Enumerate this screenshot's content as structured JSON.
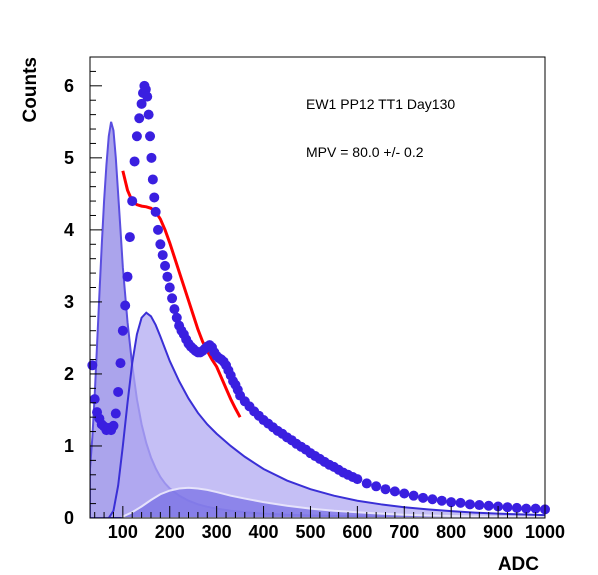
{
  "chart_data": {
    "type": "scatter",
    "xlabel": "ADC",
    "ylabel": "Counts",
    "xlim": [
      30,
      1000
    ],
    "ylim": [
      0,
      6.4
    ],
    "x_ticks": [
      100,
      200,
      300,
      400,
      500,
      600,
      700,
      800,
      900,
      1000
    ],
    "y_ticks": [
      0,
      1,
      2,
      3,
      4,
      5,
      6
    ],
    "grid": false,
    "annotations": [
      "EW1 PP12 TT1 Day130",
      "MPV = 80.0 +/- 0.2"
    ],
    "series": [
      {
        "kind": "points",
        "color": "#3a1fe0",
        "x": [
          35,
          40,
          45,
          50,
          55,
          60,
          65,
          70,
          75,
          80,
          85,
          90,
          95,
          100,
          105,
          110,
          115,
          120,
          125,
          130,
          135,
          140,
          143,
          146,
          149,
          152,
          155,
          158,
          161,
          164,
          167,
          170,
          175,
          180,
          185,
          190,
          195,
          200,
          205,
          210,
          215,
          220,
          225,
          230,
          235,
          240,
          245,
          250,
          255,
          260,
          265,
          270,
          275,
          280,
          285,
          290,
          295,
          300,
          305,
          310,
          315,
          320,
          325,
          330,
          335,
          340,
          345,
          350,
          360,
          370,
          380,
          390,
          400,
          410,
          420,
          430,
          440,
          450,
          460,
          470,
          480,
          490,
          500,
          510,
          520,
          530,
          540,
          550,
          560,
          570,
          580,
          590,
          600,
          620,
          640,
          660,
          680,
          700,
          720,
          740,
          760,
          780,
          800,
          820,
          840,
          860,
          880,
          900,
          920,
          940,
          960,
          980,
          1000
        ],
        "y": [
          2.12,
          1.65,
          1.47,
          1.38,
          1.3,
          1.27,
          1.22,
          1.25,
          1.22,
          1.28,
          1.45,
          1.75,
          2.15,
          2.6,
          2.95,
          3.35,
          3.9,
          4.4,
          4.95,
          5.3,
          5.55,
          5.75,
          5.9,
          6.0,
          5.95,
          5.85,
          5.6,
          5.3,
          5.0,
          4.7,
          4.45,
          4.25,
          4.0,
          3.8,
          3.65,
          3.5,
          3.35,
          3.2,
          3.05,
          2.9,
          2.78,
          2.67,
          2.6,
          2.55,
          2.48,
          2.42,
          2.38,
          2.35,
          2.32,
          2.3,
          2.3,
          2.32,
          2.35,
          2.38,
          2.4,
          2.37,
          2.3,
          2.25,
          2.22,
          2.2,
          2.17,
          2.12,
          2.05,
          1.98,
          1.9,
          1.85,
          1.78,
          1.7,
          1.62,
          1.55,
          1.48,
          1.42,
          1.36,
          1.31,
          1.26,
          1.21,
          1.17,
          1.12,
          1.08,
          1.03,
          0.99,
          0.95,
          0.9,
          0.86,
          0.82,
          0.78,
          0.74,
          0.71,
          0.67,
          0.63,
          0.6,
          0.57,
          0.54,
          0.48,
          0.44,
          0.4,
          0.37,
          0.34,
          0.31,
          0.28,
          0.26,
          0.24,
          0.22,
          0.21,
          0.19,
          0.18,
          0.17,
          0.16,
          0.15,
          0.14,
          0.13,
          0.13,
          0.12
        ]
      },
      {
        "kind": "fit-line",
        "color": "#ff0000",
        "x": [
          100,
          110,
          120,
          130,
          140,
          150,
          160,
          170,
          180,
          190,
          200,
          210,
          220,
          230,
          240,
          250,
          260,
          270,
          280,
          290,
          300,
          310,
          320,
          330,
          340,
          350
        ],
        "y": [
          4.82,
          4.55,
          4.4,
          4.35,
          4.33,
          4.32,
          4.3,
          4.25,
          4.15,
          4.0,
          3.82,
          3.62,
          3.42,
          3.22,
          3.02,
          2.82,
          2.62,
          2.45,
          2.32,
          2.2,
          2.1,
          1.95,
          1.8,
          1.65,
          1.52,
          1.4
        ]
      },
      {
        "kind": "area",
        "color": "#5a4ee0",
        "fill": "#8f86e6",
        "x": [
          30,
          35,
          40,
          45,
          50,
          55,
          60,
          65,
          70,
          75,
          80,
          85,
          90,
          95,
          100,
          110,
          120,
          130,
          140,
          150,
          160,
          170,
          180,
          190,
          200,
          220,
          240,
          260,
          280,
          300,
          330,
          360,
          400,
          450,
          500,
          550,
          600,
          700,
          800,
          900,
          1000
        ],
        "y": [
          0.68,
          1.12,
          1.7,
          2.4,
          3.1,
          3.78,
          4.4,
          4.9,
          5.3,
          5.5,
          5.38,
          5.0,
          4.5,
          4.0,
          3.48,
          2.72,
          2.12,
          1.65,
          1.3,
          1.04,
          0.84,
          0.69,
          0.57,
          0.48,
          0.41,
          0.31,
          0.24,
          0.19,
          0.155,
          0.13,
          0.1,
          0.08,
          0.06,
          0.045,
          0.035,
          0.027,
          0.021,
          0.014,
          0.01,
          0.007,
          0.005
        ]
      },
      {
        "kind": "area",
        "color": "#3a2fd6",
        "fill": "#b1aaf2",
        "x": [
          70,
          80,
          90,
          100,
          110,
          120,
          130,
          140,
          150,
          160,
          170,
          180,
          190,
          200,
          220,
          240,
          260,
          280,
          300,
          330,
          360,
          400,
          450,
          500,
          550,
          600,
          650,
          700,
          750,
          800,
          850,
          900,
          950,
          1000
        ],
        "y": [
          0.0,
          0.1,
          0.45,
          1.0,
          1.6,
          2.15,
          2.55,
          2.78,
          2.85,
          2.8,
          2.68,
          2.52,
          2.35,
          2.18,
          1.9,
          1.66,
          1.46,
          1.3,
          1.17,
          1.0,
          0.85,
          0.68,
          0.52,
          0.4,
          0.31,
          0.24,
          0.19,
          0.15,
          0.12,
          0.095,
          0.075,
          0.06,
          0.05,
          0.04
        ]
      },
      {
        "kind": "area",
        "color": "#e6e3fb",
        "fill": "#7a72e6",
        "x": [
          100,
          120,
          140,
          160,
          180,
          200,
          220,
          240,
          260,
          280,
          300,
          330,
          360,
          400,
          450,
          500,
          550,
          600,
          650,
          700,
          750,
          800,
          850,
          900,
          950,
          1000
        ],
        "y": [
          0.02,
          0.08,
          0.16,
          0.25,
          0.33,
          0.38,
          0.41,
          0.42,
          0.41,
          0.39,
          0.36,
          0.31,
          0.27,
          0.22,
          0.17,
          0.13,
          0.1,
          0.08,
          0.06,
          0.045,
          0.035,
          0.027,
          0.02,
          0.015,
          0.012,
          0.01
        ]
      }
    ]
  }
}
